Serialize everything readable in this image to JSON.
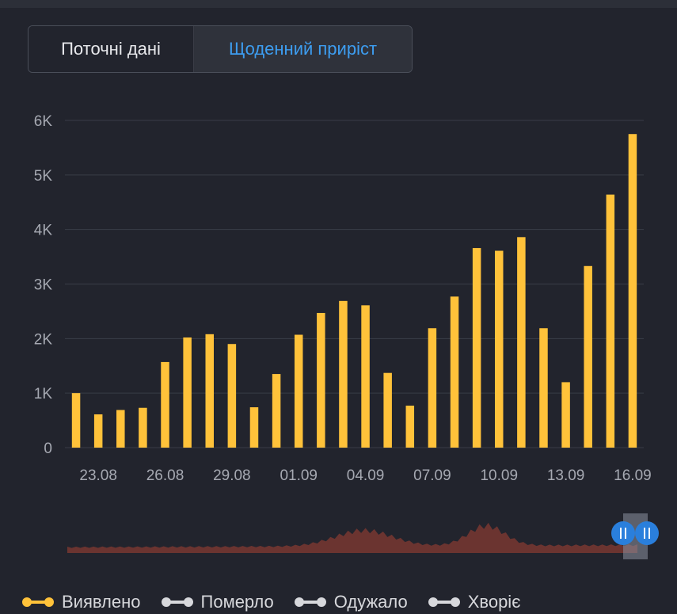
{
  "tabs": {
    "current": "Поточні дані",
    "daily": "Щоденний приріст"
  },
  "colors": {
    "bar": "#ffc23a",
    "grid": "#3a3d47",
    "axis_text": "#a6a9b2",
    "navigator_fill": "#6b3430",
    "handle": "#2a7fdc",
    "inactive_series": "#d7d8dc"
  },
  "chart_data": {
    "type": "bar",
    "categories": [
      "22.08",
      "23.08",
      "24.08",
      "25.08",
      "26.08",
      "27.08",
      "28.08",
      "29.08",
      "30.08",
      "31.08",
      "01.09",
      "02.09",
      "03.09",
      "04.09",
      "05.09",
      "06.09",
      "07.09",
      "08.09",
      "09.09",
      "10.09",
      "11.09",
      "12.09",
      "13.09",
      "14.09",
      "15.09",
      "16.09"
    ],
    "x_tick_labels": [
      "23.08",
      "26.08",
      "29.08",
      "01.09",
      "04.09",
      "07.09",
      "10.09",
      "13.09",
      "16.09"
    ],
    "series": [
      {
        "name": "Виявлено",
        "values": [
          1000,
          610,
          690,
          730,
          1570,
          2020,
          2080,
          1900,
          740,
          1350,
          2070,
          2470,
          2690,
          2610,
          1370,
          770,
          2190,
          2770,
          3660,
          3610,
          3860,
          2190,
          1200,
          3330,
          4640,
          5750
        ]
      }
    ],
    "y_tick_labels": [
      "0",
      "1K",
      "2K",
      "3K",
      "4K",
      "5K",
      "6K"
    ],
    "ylim": [
      0,
      6000
    ],
    "grid": true
  },
  "legend": [
    {
      "label": "Виявлено",
      "active": true
    },
    {
      "label": "Померло",
      "active": false
    },
    {
      "label": "Одужало",
      "active": false
    },
    {
      "label": "Хворіє",
      "active": false
    }
  ]
}
